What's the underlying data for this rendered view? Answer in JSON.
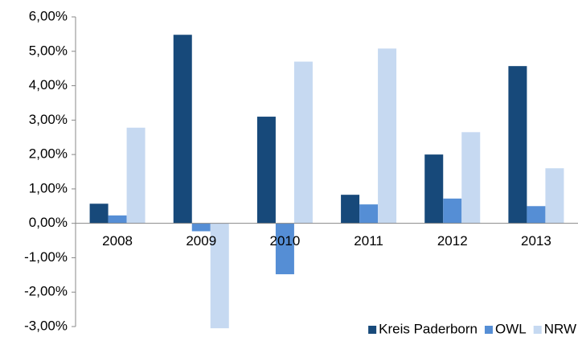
{
  "chart_data": {
    "type": "bar",
    "categories": [
      "2008",
      "2009",
      "2010",
      "2011",
      "2012",
      "2013"
    ],
    "series": [
      {
        "name": "Kreis Paderborn",
        "color": "#17497a",
        "values": [
          0.57,
          5.48,
          3.1,
          0.83,
          2.0,
          4.57
        ]
      },
      {
        "name": "OWL",
        "color": "#558ed5",
        "values": [
          0.23,
          -0.23,
          -1.48,
          0.55,
          0.72,
          0.5
        ]
      },
      {
        "name": "NRW",
        "color": "#c6d9f1",
        "values": [
          2.78,
          -3.05,
          4.7,
          5.08,
          2.65,
          1.6
        ]
      }
    ],
    "ylim": [
      -3,
      6
    ],
    "yticks": [
      {
        "value": -3,
        "label": "-3,00%"
      },
      {
        "value": -2,
        "label": "-2,00%"
      },
      {
        "value": -1,
        "label": "-1,00%"
      },
      {
        "value": 0,
        "label": "0,00%"
      },
      {
        "value": 1,
        "label": "1,00%"
      },
      {
        "value": 2,
        "label": "2,00%"
      },
      {
        "value": 3,
        "label": "3,00%"
      },
      {
        "value": 4,
        "label": "4,00%"
      },
      {
        "value": 5,
        "label": "5,00%"
      },
      {
        "value": 6,
        "label": "6,00%"
      }
    ],
    "grid": false,
    "legend": "bottom-right"
  }
}
